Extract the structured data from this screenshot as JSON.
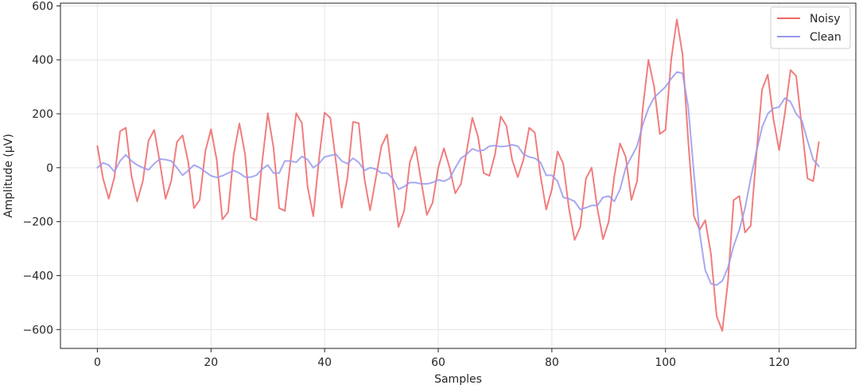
{
  "chart_data": {
    "type": "line",
    "title": "",
    "xlabel": "Samples",
    "ylabel": "Amplitude (μV)",
    "xlim": [
      -6.5,
      133.5
    ],
    "ylim": [
      -670,
      610
    ],
    "xticks": [
      0,
      20,
      40,
      60,
      80,
      100,
      120
    ],
    "yticks": [
      -600,
      -400,
      -200,
      0,
      200,
      400,
      600
    ],
    "xtick_labels": [
      "0",
      "20",
      "40",
      "60",
      "80",
      "100",
      "120"
    ],
    "ytick_labels": [
      "−600",
      "−400",
      "−200",
      "0",
      "200",
      "400",
      "600"
    ],
    "grid": true,
    "legend_position": "top-right",
    "series": [
      {
        "name": "Noisy",
        "color": "#ee6666",
        "values": [
          80,
          -40,
          -115,
          -35,
          135,
          148,
          -30,
          -125,
          -50,
          100,
          140,
          20,
          -115,
          -50,
          95,
          120,
          20,
          -150,
          -120,
          60,
          143,
          30,
          -192,
          -165,
          50,
          164,
          50,
          -185,
          -195,
          20,
          202,
          75,
          -150,
          -160,
          25,
          202,
          165,
          -70,
          -180,
          30,
          204,
          185,
          20,
          -148,
          -40,
          170,
          165,
          -40,
          -158,
          -40,
          80,
          123,
          -50,
          -220,
          -160,
          20,
          78,
          -50,
          -175,
          -130,
          0,
          72,
          0,
          -95,
          -60,
          60,
          185,
          115,
          -20,
          -30,
          50,
          190,
          155,
          30,
          -35,
          30,
          148,
          130,
          -30,
          -155,
          -80,
          60,
          15,
          -150,
          -268,
          -220,
          -40,
          0,
          -150,
          -265,
          -200,
          -30,
          90,
          40,
          -120,
          -50,
          220,
          400,
          300,
          125,
          140,
          400,
          550,
          420,
          100,
          -180,
          -230,
          -195,
          -320,
          -550,
          -605,
          -420,
          -120,
          -105,
          -240,
          -215,
          50,
          290,
          345,
          180,
          65,
          200,
          362,
          340,
          150,
          -40,
          -50,
          95
        ]
      },
      {
        "name": "Clean",
        "color": "#9999ee",
        "values": [
          0,
          18,
          10,
          -15,
          25,
          48,
          25,
          10,
          0,
          -8,
          15,
          32,
          30,
          25,
          0,
          -28,
          -10,
          10,
          0,
          -15,
          -30,
          -36,
          -30,
          -20,
          -10,
          -20,
          -35,
          -35,
          -28,
          -5,
          10,
          -20,
          -20,
          25,
          25,
          20,
          42,
          30,
          0,
          15,
          40,
          45,
          50,
          25,
          15,
          35,
          20,
          -10,
          0,
          -5,
          -20,
          -20,
          -40,
          -80,
          -70,
          -55,
          -55,
          -60,
          -60,
          -55,
          -45,
          -50,
          -40,
          0,
          35,
          50,
          70,
          62,
          65,
          80,
          82,
          78,
          80,
          85,
          80,
          50,
          40,
          35,
          20,
          -28,
          -28,
          -50,
          -110,
          -115,
          -125,
          -155,
          -148,
          -140,
          -140,
          -110,
          -105,
          -125,
          -80,
          0,
          40,
          80,
          160,
          220,
          260,
          280,
          300,
          330,
          355,
          350,
          225,
          -20,
          -240,
          -380,
          -430,
          -435,
          -420,
          -370,
          -290,
          -230,
          -150,
          -40,
          60,
          150,
          200,
          220,
          225,
          258,
          245,
          200,
          175,
          100,
          30,
          5
        ]
      }
    ]
  }
}
